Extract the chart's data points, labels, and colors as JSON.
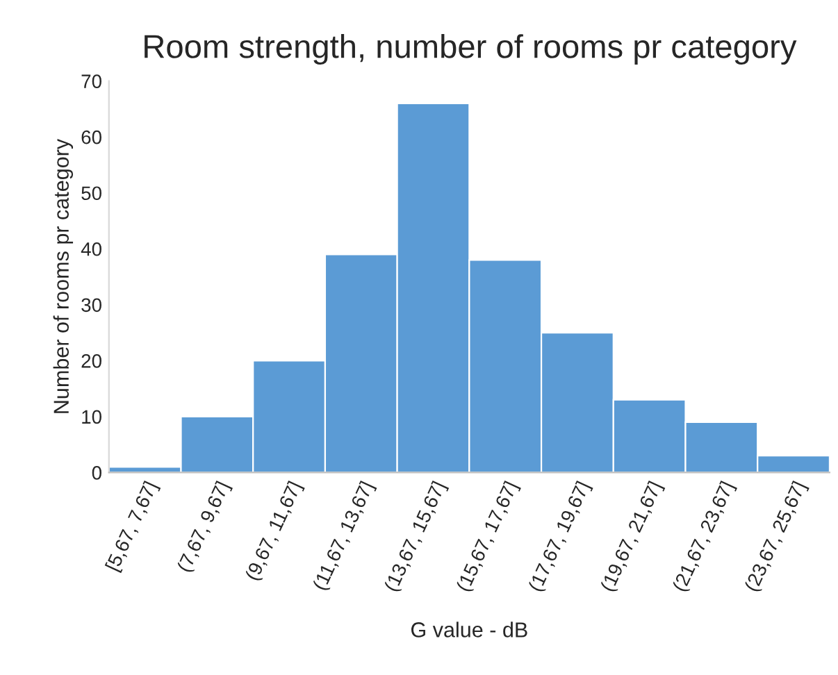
{
  "chart_data": {
    "type": "bar",
    "title": "Room strength, number of rooms pr category",
    "xlabel": "G value - dB",
    "ylabel": "Number of rooms pr category",
    "categories": [
      "[5,67, 7,67]",
      "(7,67, 9,67]",
      "(9,67, 11,67]",
      "(11,67, 13,67]",
      "(13,67, 15,67]",
      "(15,67, 17,67]",
      "(17,67, 19,67]",
      "(19,67, 21,67]",
      "(21,67, 23,67]",
      "(23,67, 25,67]"
    ],
    "values": [
      1,
      10,
      20,
      39,
      66,
      38,
      25,
      13,
      9,
      3
    ],
    "color": "#5b9bd5",
    "ylim": [
      0,
      70
    ],
    "yticks": [
      0,
      10,
      20,
      30,
      40,
      50,
      60,
      70
    ],
    "grid": false,
    "legend": false
  }
}
